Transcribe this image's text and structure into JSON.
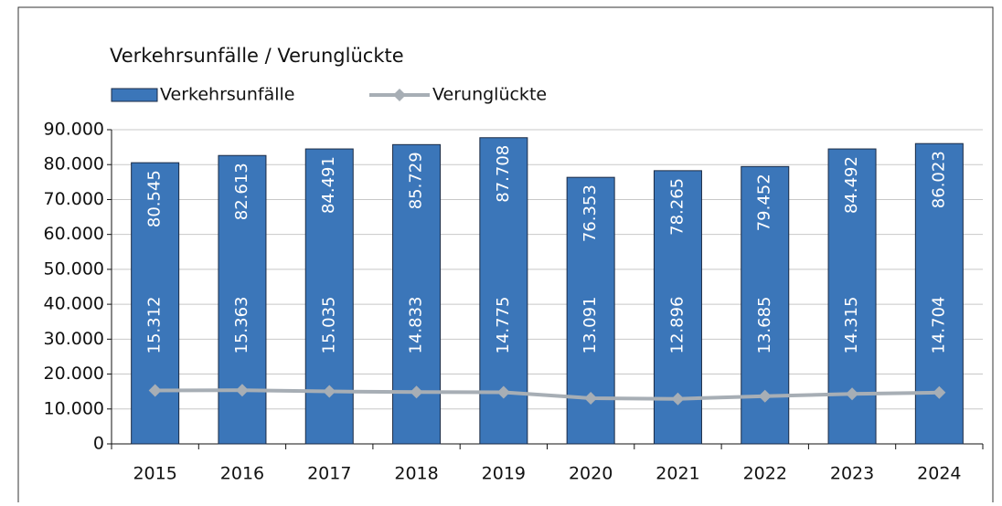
{
  "chart_data": {
    "type": "bar_line",
    "title": "Verkehrsunfälle / Verunglückte",
    "categories": [
      "2015",
      "2016",
      "2017",
      "2018",
      "2019",
      "2020",
      "2021",
      "2022",
      "2023",
      "2024"
    ],
    "series": [
      {
        "name": "Verkehrsunfälle",
        "type": "bar",
        "color": "#3b76b9",
        "values": [
          80545,
          82613,
          84491,
          85729,
          87708,
          76353,
          78265,
          79452,
          84492,
          86023
        ],
        "value_labels": [
          "80.545",
          "82.613",
          "84.491",
          "85.729",
          "87.708",
          "76.353",
          "78.265",
          "79.452",
          "84.492",
          "86.023"
        ]
      },
      {
        "name": "Verunglückte",
        "type": "line",
        "color": "#a7aeb5",
        "values": [
          15312,
          15363,
          15035,
          14833,
          14775,
          13091,
          12896,
          13685,
          14315,
          14704
        ],
        "value_labels": [
          "15.312",
          "15.363",
          "15.035",
          "14.833",
          "14.775",
          "13.091",
          "12.896",
          "13.685",
          "14.315",
          "14.704"
        ]
      }
    ],
    "ylim": [
      0,
      90000
    ],
    "yticks": [
      0,
      {
        "value": 10000,
        "label": "10.000"
      },
      {
        "value": 20000,
        "label": "20.000"
      },
      {
        "value": 30000,
        "label": "30.000"
      },
      {
        "value": 40000,
        "label": "40.000"
      },
      {
        "value": 50000,
        "label": "50.000"
      },
      {
        "value": 60000,
        "label": "60.000"
      },
      {
        "value": 70000,
        "label": "70.000"
      },
      {
        "value": 80000,
        "label": "80.000"
      },
      {
        "value": 90000,
        "label": "90.000"
      }
    ],
    "grid": true
  }
}
